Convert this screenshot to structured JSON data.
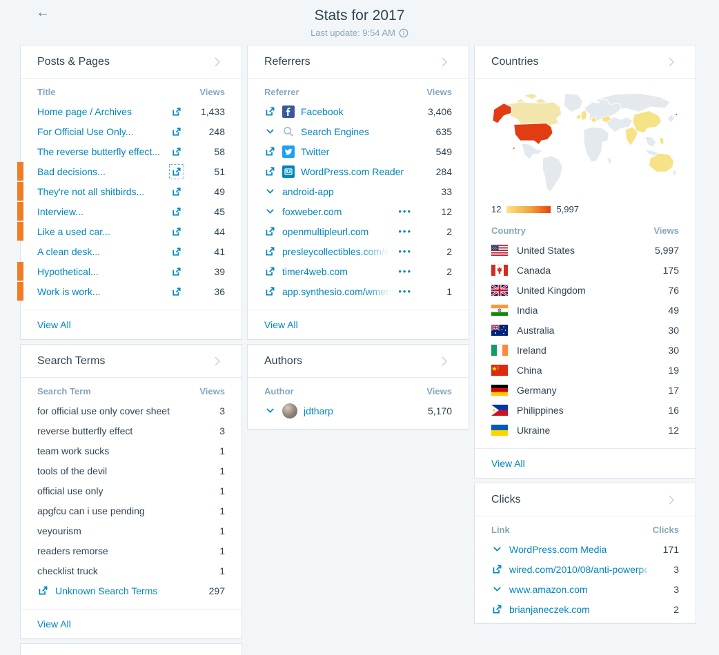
{
  "colors": {
    "accent": "#0087be",
    "text": "#2e4453",
    "muted": "#87a6bc",
    "marker_orange": "#ef7d23",
    "map_low": "#fce588",
    "map_high": "#e8430f",
    "background": "#f3f6f8"
  },
  "icons": {
    "back": "arrow-left",
    "panel_nav": "chevron-right",
    "external": "external-link",
    "expand": "chevron-down",
    "menu": "ellipsis-horizontal",
    "info": "info-circle",
    "search_favicon": "magnifier"
  },
  "page": {
    "back": "←",
    "title": "Stats for 2017",
    "subtitle": "Last update: 9:54 AM"
  },
  "panels": {
    "posts": {
      "title": "Posts & Pages",
      "col_label": "Title",
      "col_value": "Views",
      "view_all": "View All",
      "rows": [
        {
          "label": "Home page / Archives",
          "value": "1,433",
          "external": true
        },
        {
          "label": "For Official Use Only...",
          "value": "248",
          "external": true
        },
        {
          "label": "The reverse butterfly effect...",
          "value": "58",
          "external": true
        },
        {
          "label": "Bad decisions...",
          "value": "51",
          "external": true,
          "marker": true,
          "focused": true
        },
        {
          "label": "They're not all shitbirds...",
          "value": "49",
          "external": true,
          "marker": true
        },
        {
          "label": "Interview...",
          "value": "45",
          "external": true,
          "marker": true
        },
        {
          "label": "Like a used car...",
          "value": "44",
          "external": true,
          "marker": true
        },
        {
          "label": "A clean desk...",
          "value": "41",
          "external": true
        },
        {
          "label": "Hypothetical...",
          "value": "39",
          "external": true,
          "marker": true
        },
        {
          "label": "Work is work...",
          "value": "36",
          "external": true,
          "marker": true
        }
      ]
    },
    "referrers": {
      "title": "Referrers",
      "col_label": "Referrer",
      "col_value": "Views",
      "view_all": "View All",
      "rows": [
        {
          "lead": "external",
          "favicon": "facebook",
          "label": "Facebook",
          "value": "3,406"
        },
        {
          "lead": "chevron",
          "favicon": "search",
          "label": "Search Engines",
          "value": "635"
        },
        {
          "lead": "external",
          "favicon": "twitter",
          "label": "Twitter",
          "value": "549"
        },
        {
          "lead": "external",
          "favicon": "reader",
          "label": "WordPress.com Reader",
          "value": "284"
        },
        {
          "lead": "chevron",
          "label": "android-app",
          "value": "33"
        },
        {
          "lead": "chevron",
          "label": "foxweber.com",
          "dots": true,
          "value": "12"
        },
        {
          "lead": "external",
          "label": "openmultipleurl.com",
          "dots": true,
          "value": "2"
        },
        {
          "lead": "external",
          "label": "presleycollectibles",
          "fade": ".com/st",
          "dots": true,
          "value": "2"
        },
        {
          "lead": "external",
          "label": "timer4web.com",
          "dots": true,
          "value": "2"
        },
        {
          "lead": "external",
          "label": "app.synthesio.com/",
          "fade": "wment",
          "dots": true,
          "value": "1"
        }
      ]
    },
    "search": {
      "title": "Search Terms",
      "col_label": "Search Term",
      "col_value": "Views",
      "view_all": "View All",
      "rows": [
        {
          "label": "for official use only cover sheet",
          "value": "3"
        },
        {
          "label": "reverse butterfly effect",
          "value": "3"
        },
        {
          "label": "team work sucks",
          "value": "1"
        },
        {
          "label": "tools of the devil",
          "value": "1"
        },
        {
          "label": "official use only",
          "value": "1"
        },
        {
          "label": "apgfcu can i use pending",
          "value": "1"
        },
        {
          "label": "veyourism",
          "value": "1"
        },
        {
          "label": "readers remorse",
          "value": "1"
        },
        {
          "label": "checklist truck",
          "value": "1"
        },
        {
          "label": "Unknown Search Terms",
          "value": "297",
          "external": true,
          "link": true
        }
      ]
    },
    "authors": {
      "title": "Authors",
      "col_label": "Author",
      "col_value": "Views",
      "rows": [
        {
          "lead": "chevron",
          "avatar": true,
          "label": "jdtharp",
          "value": "5,170"
        }
      ]
    },
    "countries": {
      "title": "Countries",
      "col_label": "Country",
      "col_value": "Views",
      "view_all": "View All",
      "legend_min": "12",
      "legend_max": "5,997",
      "rows": [
        {
          "flag": "us",
          "label": "United States",
          "value": "5,997"
        },
        {
          "flag": "ca",
          "label": "Canada",
          "value": "175"
        },
        {
          "flag": "gb",
          "label": "United Kingdom",
          "value": "76"
        },
        {
          "flag": "in",
          "label": "India",
          "value": "49"
        },
        {
          "flag": "au",
          "label": "Australia",
          "value": "30"
        },
        {
          "flag": "ie",
          "label": "Ireland",
          "value": "30"
        },
        {
          "flag": "cn",
          "label": "China",
          "value": "19"
        },
        {
          "flag": "de",
          "label": "Germany",
          "value": "17"
        },
        {
          "flag": "ph",
          "label": "Philippines",
          "value": "16"
        },
        {
          "flag": "ua",
          "label": "Ukraine",
          "value": "12"
        }
      ]
    },
    "clicks": {
      "title": "Clicks",
      "col_label": "Link",
      "col_value": "Clicks",
      "rows": [
        {
          "lead": "chevron",
          "label": "WordPress.com Media",
          "value": "171"
        },
        {
          "lead": "external",
          "label": "wired.com/2010/08/anti-power",
          "fade": "poi",
          "value": "3"
        },
        {
          "lead": "chevron",
          "label": "www.amazon.com",
          "value": "3"
        },
        {
          "lead": "external",
          "label": "brianjaneczek.com",
          "value": "2"
        }
      ]
    }
  }
}
